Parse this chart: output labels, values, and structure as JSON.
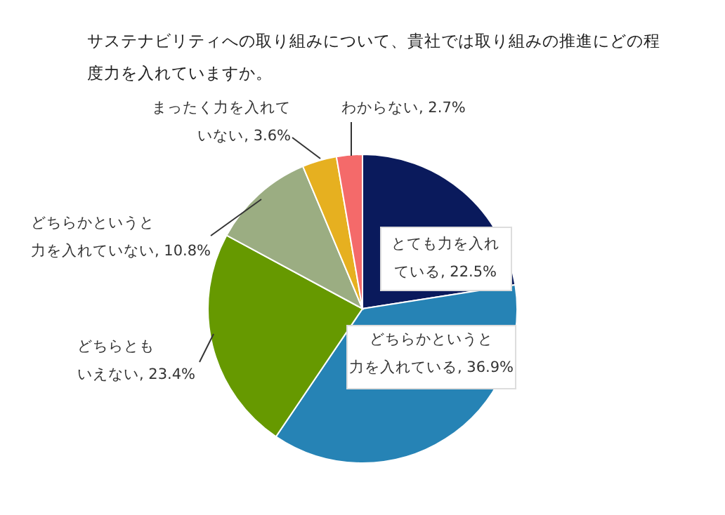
{
  "chart_data": {
    "type": "pie",
    "title": "サステナビリティへの取り組みについて、貴社では取り組みの推進にどの程度力を入れていますか。",
    "categories": [
      "とても力を入れている",
      "どちらかというと力を入れている",
      "どちらともいえない",
      "どちらかというと力を入れていない",
      "まったく力を入れていない",
      "わからない"
    ],
    "values": [
      22.5,
      36.9,
      23.4,
      10.8,
      3.6,
      2.7
    ],
    "colors": [
      "#0a1a5c",
      "#2683b5",
      "#669900",
      "#9bad82",
      "#e6b020",
      "#f46a6a"
    ],
    "value_labels": [
      "22.5%",
      "36.9%",
      "23.4%",
      "10.8%",
      "3.6%",
      "2.7%"
    ]
  }
}
